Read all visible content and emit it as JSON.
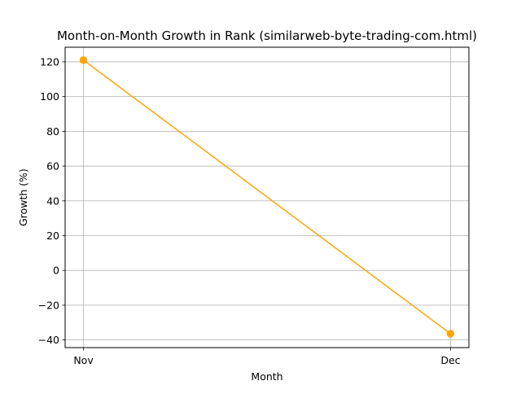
{
  "chart_data": {
    "type": "line",
    "title": "Month-on-Month Growth in Rank (similarweb-byte-trading-com.html)",
    "xlabel": "Month",
    "ylabel": "Growth (%)",
    "categories": [
      "Nov",
      "Dec"
    ],
    "series": [
      {
        "values": [
          121.0,
          -36.4
        ],
        "color": "#ffa500",
        "marker": "circle"
      }
    ],
    "ylim": [
      -44.4,
      128.4
    ],
    "yticks": [
      -40,
      -20,
      0,
      20,
      40,
      60,
      80,
      100,
      120
    ],
    "ytick_labels": [
      "−40",
      "−20",
      "0",
      "20",
      "40",
      "60",
      "80",
      "100",
      "120"
    ],
    "grid": true,
    "legend": "none"
  }
}
